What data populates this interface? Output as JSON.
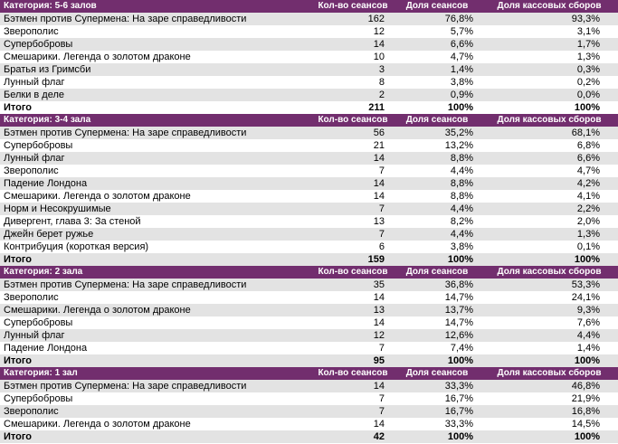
{
  "sections": [
    {
      "title": "Категория: 5-6 залов",
      "columns": [
        "Кол-во сеансов",
        "Доля сеансов",
        "Доля кассовых сборов"
      ],
      "rows": [
        [
          "Бэтмен против Супермена: На заре справедливости",
          "162",
          "76,8%",
          "93,3%"
        ],
        [
          "Зверополис",
          "12",
          "5,7%",
          "3,1%"
        ],
        [
          "Супербобровы",
          "14",
          "6,6%",
          "1,7%"
        ],
        [
          "Смешарики. Легенда о золотом драконе",
          "10",
          "4,7%",
          "1,3%"
        ],
        [
          "Братья из Гримсби",
          "3",
          "1,4%",
          "0,3%"
        ],
        [
          "Лунный флаг",
          "8",
          "3,8%",
          "0,2%"
        ],
        [
          "Белки в деле",
          "2",
          "0,9%",
          "0,0%"
        ]
      ],
      "total": [
        "Итого",
        "211",
        "100%",
        "100%"
      ]
    },
    {
      "title": "Категория: 3-4 зала",
      "columns": [
        "Кол-во сеансов",
        "Доля сеансов",
        "Доля кассовых сборов"
      ],
      "rows": [
        [
          "Бэтмен против Супермена: На заре справедливости",
          "56",
          "35,2%",
          "68,1%"
        ],
        [
          "Супербобровы",
          "21",
          "13,2%",
          "6,8%"
        ],
        [
          "Лунный флаг",
          "14",
          "8,8%",
          "6,6%"
        ],
        [
          "Зверополис",
          "7",
          "4,4%",
          "4,7%"
        ],
        [
          "Падение Лондона",
          "14",
          "8,8%",
          "4,2%"
        ],
        [
          "Смешарики. Легенда о золотом драконе",
          "14",
          "8,8%",
          "4,1%"
        ],
        [
          "Норм и Несокрушимые",
          "7",
          "4,4%",
          "2,2%"
        ],
        [
          "Дивергент, глава 3: За стеной",
          "13",
          "8,2%",
          "2,0%"
        ],
        [
          "Джейн берет ружье",
          "7",
          "4,4%",
          "1,3%"
        ],
        [
          "Контрибуция (короткая версия)",
          "6",
          "3,8%",
          "0,1%"
        ]
      ],
      "total": [
        "Итого",
        "159",
        "100%",
        "100%"
      ]
    },
    {
      "title": "Категория: 2 зала",
      "columns": [
        "Кол-во сеансов",
        "Доля сеансов",
        "Доля кассовых сборов"
      ],
      "rows": [
        [
          "Бэтмен против Супермена: На заре справедливости",
          "35",
          "36,8%",
          "53,3%"
        ],
        [
          "Зверополис",
          "14",
          "14,7%",
          "24,1%"
        ],
        [
          "Смешарики. Легенда о золотом драконе",
          "13",
          "13,7%",
          "9,3%"
        ],
        [
          "Супербобровы",
          "14",
          "14,7%",
          "7,6%"
        ],
        [
          "Лунный флаг",
          "12",
          "12,6%",
          "4,4%"
        ],
        [
          "Падение Лондона",
          "7",
          "7,4%",
          "1,4%"
        ]
      ],
      "total": [
        "Итого",
        "95",
        "100%",
        "100%"
      ]
    },
    {
      "title": "Категория: 1 зал",
      "columns": [
        "Кол-во сеансов",
        "Доля сеансов",
        "Доля кассовых сборов"
      ],
      "rows": [
        [
          "Бэтмен против Супермена: На заре справедливости",
          "14",
          "33,3%",
          "46,8%"
        ],
        [
          "Супербобровы",
          "7",
          "16,7%",
          "21,9%"
        ],
        [
          "Зверополис",
          "7",
          "16,7%",
          "16,8%"
        ],
        [
          "Смешарики. Легенда о золотом драконе",
          "14",
          "33,3%",
          "14,5%"
        ]
      ],
      "total": [
        "Итого",
        "42",
        "100%",
        "100%"
      ]
    }
  ]
}
